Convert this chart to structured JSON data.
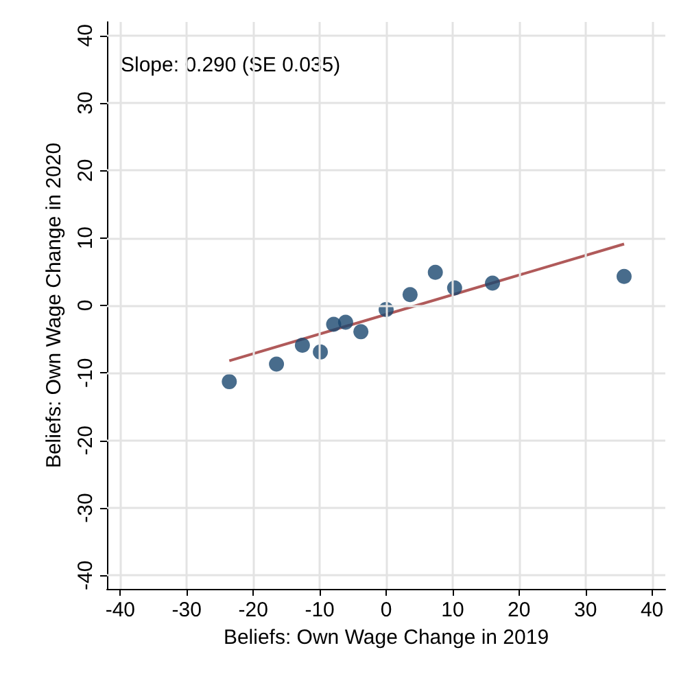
{
  "chart_data": {
    "type": "scatter",
    "xlabel": "Beliefs: Own Wage Change in 2019",
    "ylabel": "Beliefs: Own Wage Change in 2020",
    "annotations": [
      "Slope: 0.290 (SE 0.035)"
    ],
    "xlim": [
      -42,
      42
    ],
    "ylim": [
      -42,
      42
    ],
    "xticks": [
      -40,
      -30,
      -20,
      -10,
      0,
      10,
      20,
      30,
      40
    ],
    "yticks": [
      -40,
      -30,
      -20,
      -10,
      0,
      10,
      20,
      30,
      40
    ],
    "grid": true,
    "series": [
      {
        "marker": "circle",
        "color": "#1a476f",
        "x": [
          -23.6,
          -16.5,
          -12.6,
          -9.9,
          -7.9,
          -6.1,
          -3.8,
          0,
          3.6,
          7.4,
          10.3,
          16.0,
          35.8
        ],
        "values": [
          -11.3,
          -8.7,
          -5.9,
          -6.9,
          -2.8,
          -2.5,
          -3.9,
          -0.6,
          1.6,
          4.9,
          2.6,
          3.3,
          4.3
        ]
      },
      {
        "type": "line",
        "marker": "none",
        "color": "#b05a5a",
        "x": [
          -23.6,
          35.8
        ],
        "values": [
          -8.2,
          9.1
        ]
      }
    ]
  }
}
